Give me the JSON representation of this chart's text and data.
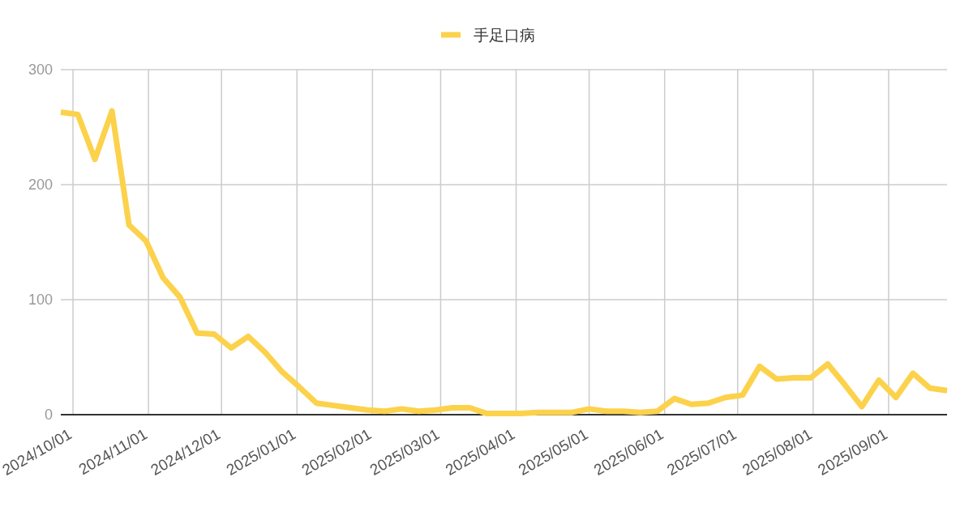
{
  "chart_data": {
    "type": "line",
    "x": [
      "2024-09-26",
      "2024-10-03",
      "2024-10-10",
      "2024-10-17",
      "2024-10-24",
      "2024-10-31",
      "2024-11-07",
      "2024-11-14",
      "2024-11-21",
      "2024-11-28",
      "2024-12-05",
      "2024-12-12",
      "2024-12-19",
      "2024-12-26",
      "2025-01-02",
      "2025-01-09",
      "2025-01-16",
      "2025-01-23",
      "2025-01-30",
      "2025-02-06",
      "2025-02-13",
      "2025-02-20",
      "2025-02-27",
      "2025-03-06",
      "2025-03-13",
      "2025-03-20",
      "2025-03-27",
      "2025-04-03",
      "2025-04-10",
      "2025-04-17",
      "2025-04-24",
      "2025-05-01",
      "2025-05-08",
      "2025-05-15",
      "2025-05-22",
      "2025-05-29",
      "2025-06-05",
      "2025-06-12",
      "2025-06-19",
      "2025-06-26",
      "2025-07-03",
      "2025-07-10",
      "2025-07-17",
      "2025-07-24",
      "2025-07-31",
      "2025-08-07",
      "2025-08-14",
      "2025-08-21",
      "2025-08-28",
      "2025-09-04",
      "2025-09-11",
      "2025-09-18",
      "2025-09-25"
    ],
    "series": [
      {
        "name": "手足口病",
        "color": "#fcd24c",
        "values": [
          263,
          261,
          222,
          264,
          165,
          151,
          119,
          102,
          71,
          70,
          58,
          68,
          54,
          37,
          24,
          10,
          8,
          6,
          4,
          3,
          5,
          3,
          4,
          6,
          6,
          1,
          1,
          1,
          2,
          2,
          2,
          5,
          3,
          3,
          2,
          3,
          14,
          9,
          10,
          15,
          17,
          42,
          31,
          32,
          32,
          44,
          26,
          7,
          30,
          15,
          36,
          23,
          21
        ]
      }
    ],
    "xlim": [
      "2024-09-26",
      "2025-09-25"
    ],
    "xticks": [
      {
        "value": "2024-10-01",
        "label": "2024/10/01"
      },
      {
        "value": "2024-11-01",
        "label": "2024/11/01"
      },
      {
        "value": "2024-12-01",
        "label": "2024/12/01"
      },
      {
        "value": "2025-01-01",
        "label": "2025/01/01"
      },
      {
        "value": "2025-02-01",
        "label": "2025/02/01"
      },
      {
        "value": "2025-03-01",
        "label": "2025/03/01"
      },
      {
        "value": "2025-04-01",
        "label": "2025/04/01"
      },
      {
        "value": "2025-05-01",
        "label": "2025/05/01"
      },
      {
        "value": "2025-06-01",
        "label": "2025/06/01"
      },
      {
        "value": "2025-07-01",
        "label": "2025/07/01"
      },
      {
        "value": "2025-08-01",
        "label": "2025/08/01"
      },
      {
        "value": "2025-09-01",
        "label": "2025/09/01"
      }
    ],
    "ylim": [
      0,
      300
    ],
    "yticks": [
      0,
      100,
      200,
      300
    ],
    "grid": true,
    "legend": "top",
    "marker": "none",
    "line_style": "solid"
  }
}
